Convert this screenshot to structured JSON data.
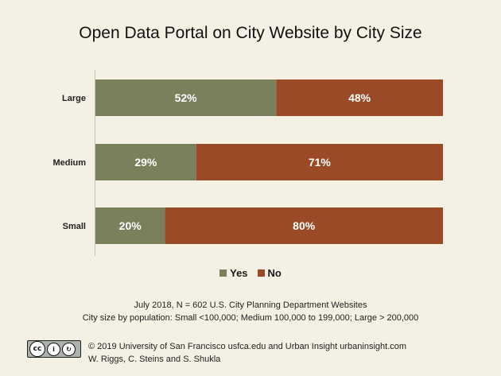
{
  "chart_data": {
    "type": "bar",
    "orientation": "horizontal",
    "stacked": true,
    "title": "Open Data Portal on City Website by City Size",
    "categories": [
      "Large",
      "Medium",
      "Small"
    ],
    "series": [
      {
        "name": "Yes",
        "values": [
          52,
          29,
          20
        ],
        "labels": [
          "52%",
          "29%",
          "20%"
        ],
        "color": "#7a7f5c"
      },
      {
        "name": "No",
        "values": [
          48,
          71,
          80
        ],
        "labels": [
          "48%",
          "71%",
          "80%"
        ],
        "color": "#9a4a27"
      }
    ],
    "xlim": [
      0,
      100
    ],
    "grid": false,
    "legend": "bottom"
  },
  "notes": {
    "line1": "July 2018, N = 602 U.S. City Planning Department Websites",
    "line2": "City size by population:  Small <100,000; Medium 100,000 to 199,000; Large > 200,000"
  },
  "footer": {
    "badge": {
      "cc": "cc",
      "by": "BY",
      "sa": "SA"
    },
    "line1": "© 2019 University of San Francisco usfca.edu and Urban Insight urbaninsight.com",
    "line2": "W. Riggs, C. Steins and S. Shukla"
  }
}
